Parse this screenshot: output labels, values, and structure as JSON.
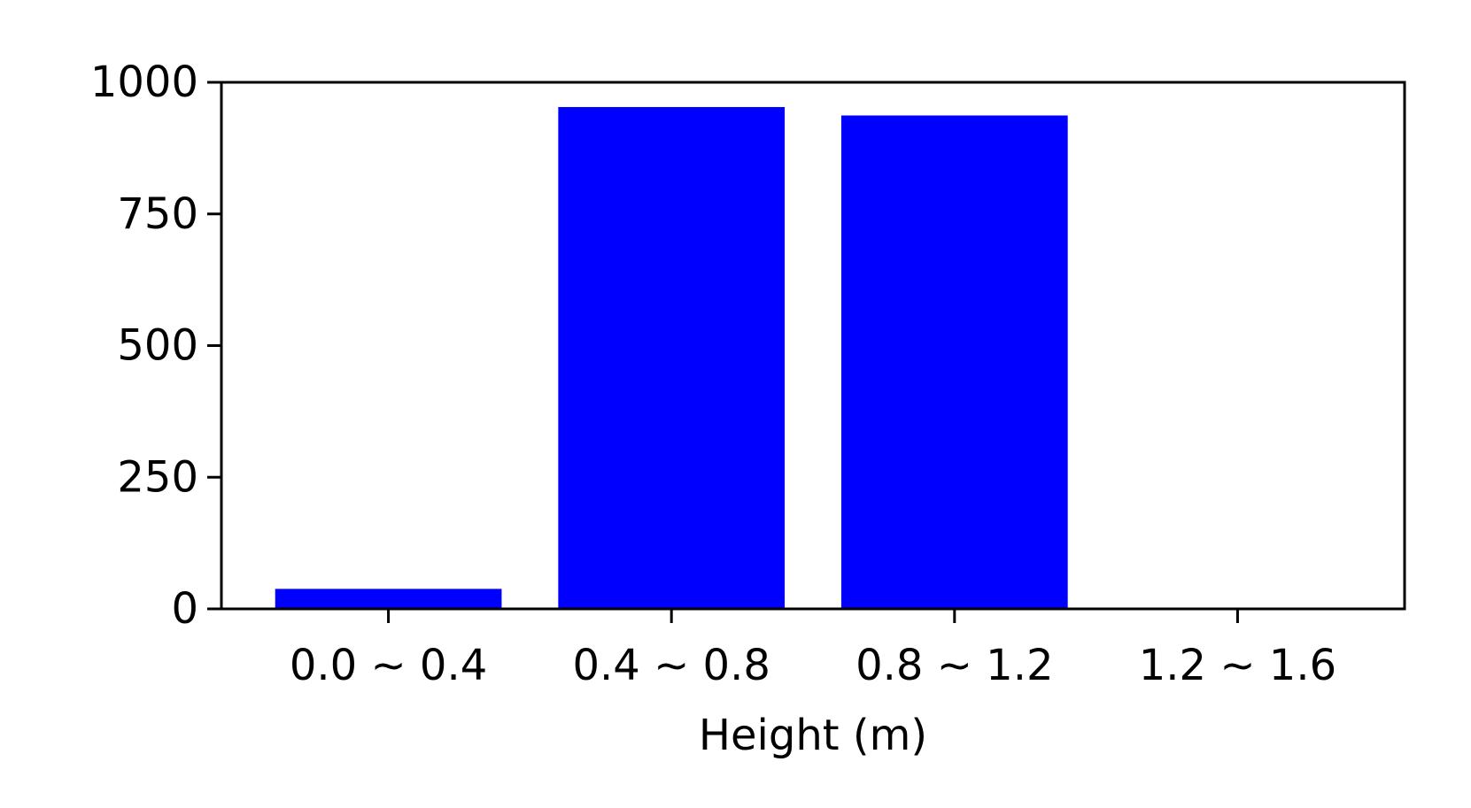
{
  "chart_data": {
    "type": "bar",
    "x_label": "Height (m)",
    "categories": [
      "0.0 ~ 0.4",
      "0.4 ~ 0.8",
      "0.8 ~ 1.2",
      "1.2 ~ 1.6"
    ],
    "values": [
      38,
      953,
      937,
      0
    ],
    "color": "#0000ff",
    "ylim": [
      0,
      1000
    ],
    "yticks": [
      0,
      250,
      500,
      750,
      1000
    ],
    "grid": false
  }
}
